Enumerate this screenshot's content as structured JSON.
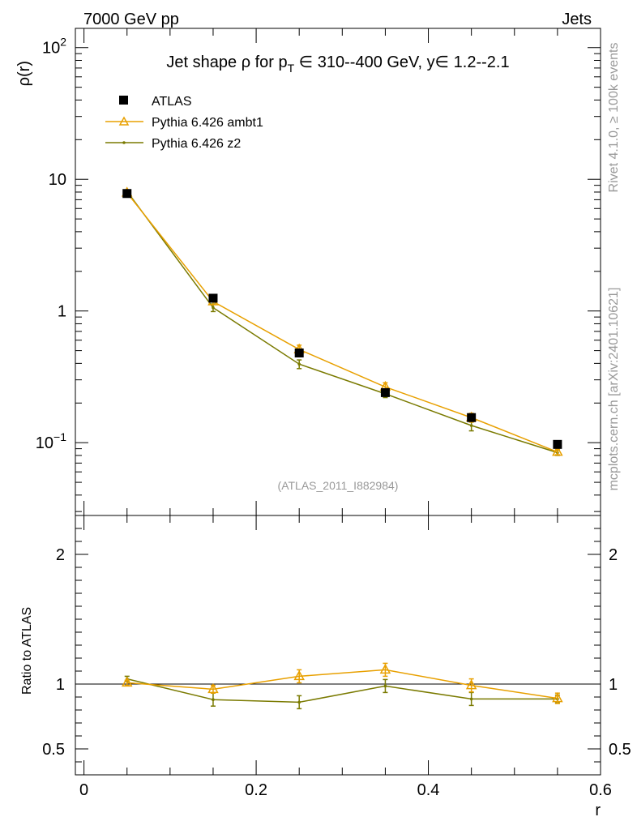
{
  "header": {
    "left": "7000 GeV pp",
    "right": "Jets"
  },
  "side_labels": {
    "rivet": "Rivet 4.1.0, ≥ 100k events",
    "mcplots": "mcplots.cern.ch [arXiv:2401.10621]"
  },
  "colors": {
    "ambt1": "#e8a000",
    "z2": "#7a7a00",
    "data": "#000000",
    "side": "#999999"
  },
  "chart_data": [
    {
      "type": "line",
      "title": "Jet shape ρ for p_T ∈ 310--400 GeV, y∈ 1.2--2.1",
      "title_parts": {
        "prefix": "Jet shape ρ for p",
        "sub": "T",
        "suffix": " ∈ 310--400 GeV, y∈ 1.2--2.1"
      },
      "ylabel": "ρ(r)",
      "xlabel": "r",
      "yscale": "log",
      "ylim": [
        0.028,
        140
      ],
      "xlim": [
        -0.01,
        0.6
      ],
      "y_ticks": [
        {
          "value": 100,
          "base": "10",
          "exp": "2"
        },
        {
          "value": 10,
          "base": "10",
          "exp": ""
        },
        {
          "value": 1,
          "base": "1",
          "exp": ""
        },
        {
          "value": 0.1,
          "base": "10",
          "exp": "−1"
        }
      ],
      "watermark": "(ATLAS_2011_I882984)",
      "legend_position": "top-left",
      "series": [
        {
          "name": "ATLAS",
          "marker": "square",
          "x": [
            0.05,
            0.15,
            0.25,
            0.35,
            0.45,
            0.55
          ],
          "y": [
            7.8,
            1.25,
            0.48,
            0.24,
            0.155,
            0.097
          ],
          "yerr": [
            0.3,
            0.05,
            0.02,
            0.01,
            0.006,
            0.003
          ]
        },
        {
          "name": "Pythia 6.426 ambt1",
          "marker": "triangle",
          "x": [
            0.05,
            0.15,
            0.25,
            0.35,
            0.45,
            0.55
          ],
          "y": [
            7.9,
            1.18,
            0.51,
            0.265,
            0.155,
            0.085
          ],
          "yerr": [
            0.2,
            0.06,
            0.04,
            0.02,
            0.012,
            0.004
          ]
        },
        {
          "name": "Pythia 6.426 z2",
          "marker": "dot",
          "x": [
            0.05,
            0.15,
            0.25,
            0.35,
            0.45,
            0.55
          ],
          "y": [
            8.1,
            1.06,
            0.395,
            0.235,
            0.135,
            0.084
          ],
          "yerr": [
            0.2,
            0.07,
            0.03,
            0.015,
            0.012,
            0.004
          ]
        }
      ]
    },
    {
      "type": "line",
      "ylabel": "Ratio to ATLAS",
      "xlabel": "r",
      "ylim": [
        0.3,
        2.3
      ],
      "xlim": [
        -0.01,
        0.6
      ],
      "y_ticks": [
        2,
        1,
        0.5
      ],
      "x_ticks": [
        0,
        0.2,
        0.4,
        0.6
      ],
      "reference_line": 1,
      "series": [
        {
          "name": "Pythia 6.426 ambt1",
          "x": [
            0.05,
            0.15,
            0.25,
            0.35,
            0.45,
            0.55
          ],
          "y": [
            1.01,
            0.96,
            1.06,
            1.11,
            0.99,
            0.89
          ],
          "yerr": [
            0.02,
            0.03,
            0.05,
            0.05,
            0.05,
            0.04
          ]
        },
        {
          "name": "Pythia 6.426 z2",
          "x": [
            0.05,
            0.15,
            0.25,
            0.35,
            0.45,
            0.55
          ],
          "y": [
            1.04,
            0.88,
            0.86,
            0.985,
            0.885,
            0.885
          ],
          "yerr": [
            0.02,
            0.05,
            0.05,
            0.05,
            0.05,
            0.03
          ]
        }
      ]
    }
  ]
}
